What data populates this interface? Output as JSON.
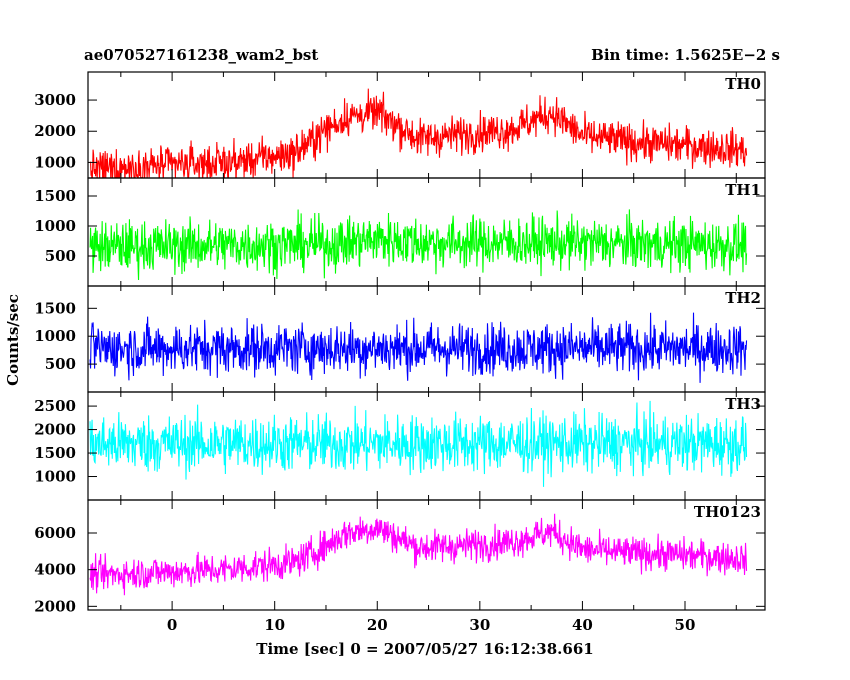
{
  "chart_data": {
    "type": "line",
    "title_left": "ae070527161238_wam2_bst",
    "title_right": "Bin time: 1.5625E−2 s",
    "xlabel": "Time [sec] 0 = 2007/05/27 16:12:38.661",
    "ylabel": "Counts/sec",
    "xlim": [
      -8.2,
      57.8
    ],
    "x_range": [
      -8,
      56
    ],
    "x_ticks": [
      0,
      10,
      20,
      30,
      40,
      50
    ],
    "grid": false,
    "panels": [
      {
        "name": "TH0",
        "color": "#ff0000",
        "ylim": [
          500,
          3900
        ],
        "y_ticks": [
          1000,
          2000,
          3000
        ],
        "baseline_noise": 420,
        "envelope": [
          [
            -8,
            780
          ],
          [
            0,
            920
          ],
          [
            6,
            1000
          ],
          [
            12,
            1300
          ],
          [
            15,
            2050
          ],
          [
            17,
            2450
          ],
          [
            20,
            2600
          ],
          [
            22,
            2200
          ],
          [
            24,
            1750
          ],
          [
            28,
            1900
          ],
          [
            33,
            2050
          ],
          [
            37,
            2600
          ],
          [
            40,
            1850
          ],
          [
            45,
            1650
          ],
          [
            50,
            1550
          ],
          [
            56,
            1400
          ]
        ]
      },
      {
        "name": "TH1",
        "color": "#00ff00",
        "ylim": [
          0,
          1800
        ],
        "y_ticks": [
          500,
          1000,
          1500
        ],
        "baseline_noise": 300,
        "envelope": [
          [
            -8,
            650
          ],
          [
            16,
            700
          ],
          [
            20,
            780
          ],
          [
            25,
            720
          ],
          [
            37,
            720
          ],
          [
            56,
            680
          ]
        ]
      },
      {
        "name": "TH2",
        "color": "#0000ff",
        "ylim": [
          0,
          1900
        ],
        "y_ticks": [
          500,
          1000,
          1500
        ],
        "baseline_noise": 320,
        "envelope": [
          [
            -8,
            780
          ],
          [
            56,
            780
          ]
        ]
      },
      {
        "name": "TH3",
        "color": "#00ffff",
        "ylim": [
          500,
          2800
        ],
        "y_ticks": [
          1000,
          1500,
          2000,
          2500
        ],
        "baseline_noise": 430,
        "envelope": [
          [
            -8,
            1700
          ],
          [
            56,
            1700
          ]
        ]
      },
      {
        "name": "TH0123",
        "color": "#ff00ff",
        "ylim": [
          1800,
          7800
        ],
        "y_ticks": [
          2000,
          4000,
          6000
        ],
        "baseline_noise": 620,
        "envelope": [
          [
            -8,
            3700
          ],
          [
            5,
            4000
          ],
          [
            12,
            4400
          ],
          [
            15,
            5300
          ],
          [
            17,
            6000
          ],
          [
            20,
            6300
          ],
          [
            24,
            5200
          ],
          [
            28,
            5300
          ],
          [
            33,
            5500
          ],
          [
            37,
            6100
          ],
          [
            40,
            5100
          ],
          [
            45,
            4900
          ],
          [
            50,
            4800
          ],
          [
            56,
            4600
          ]
        ]
      }
    ]
  }
}
